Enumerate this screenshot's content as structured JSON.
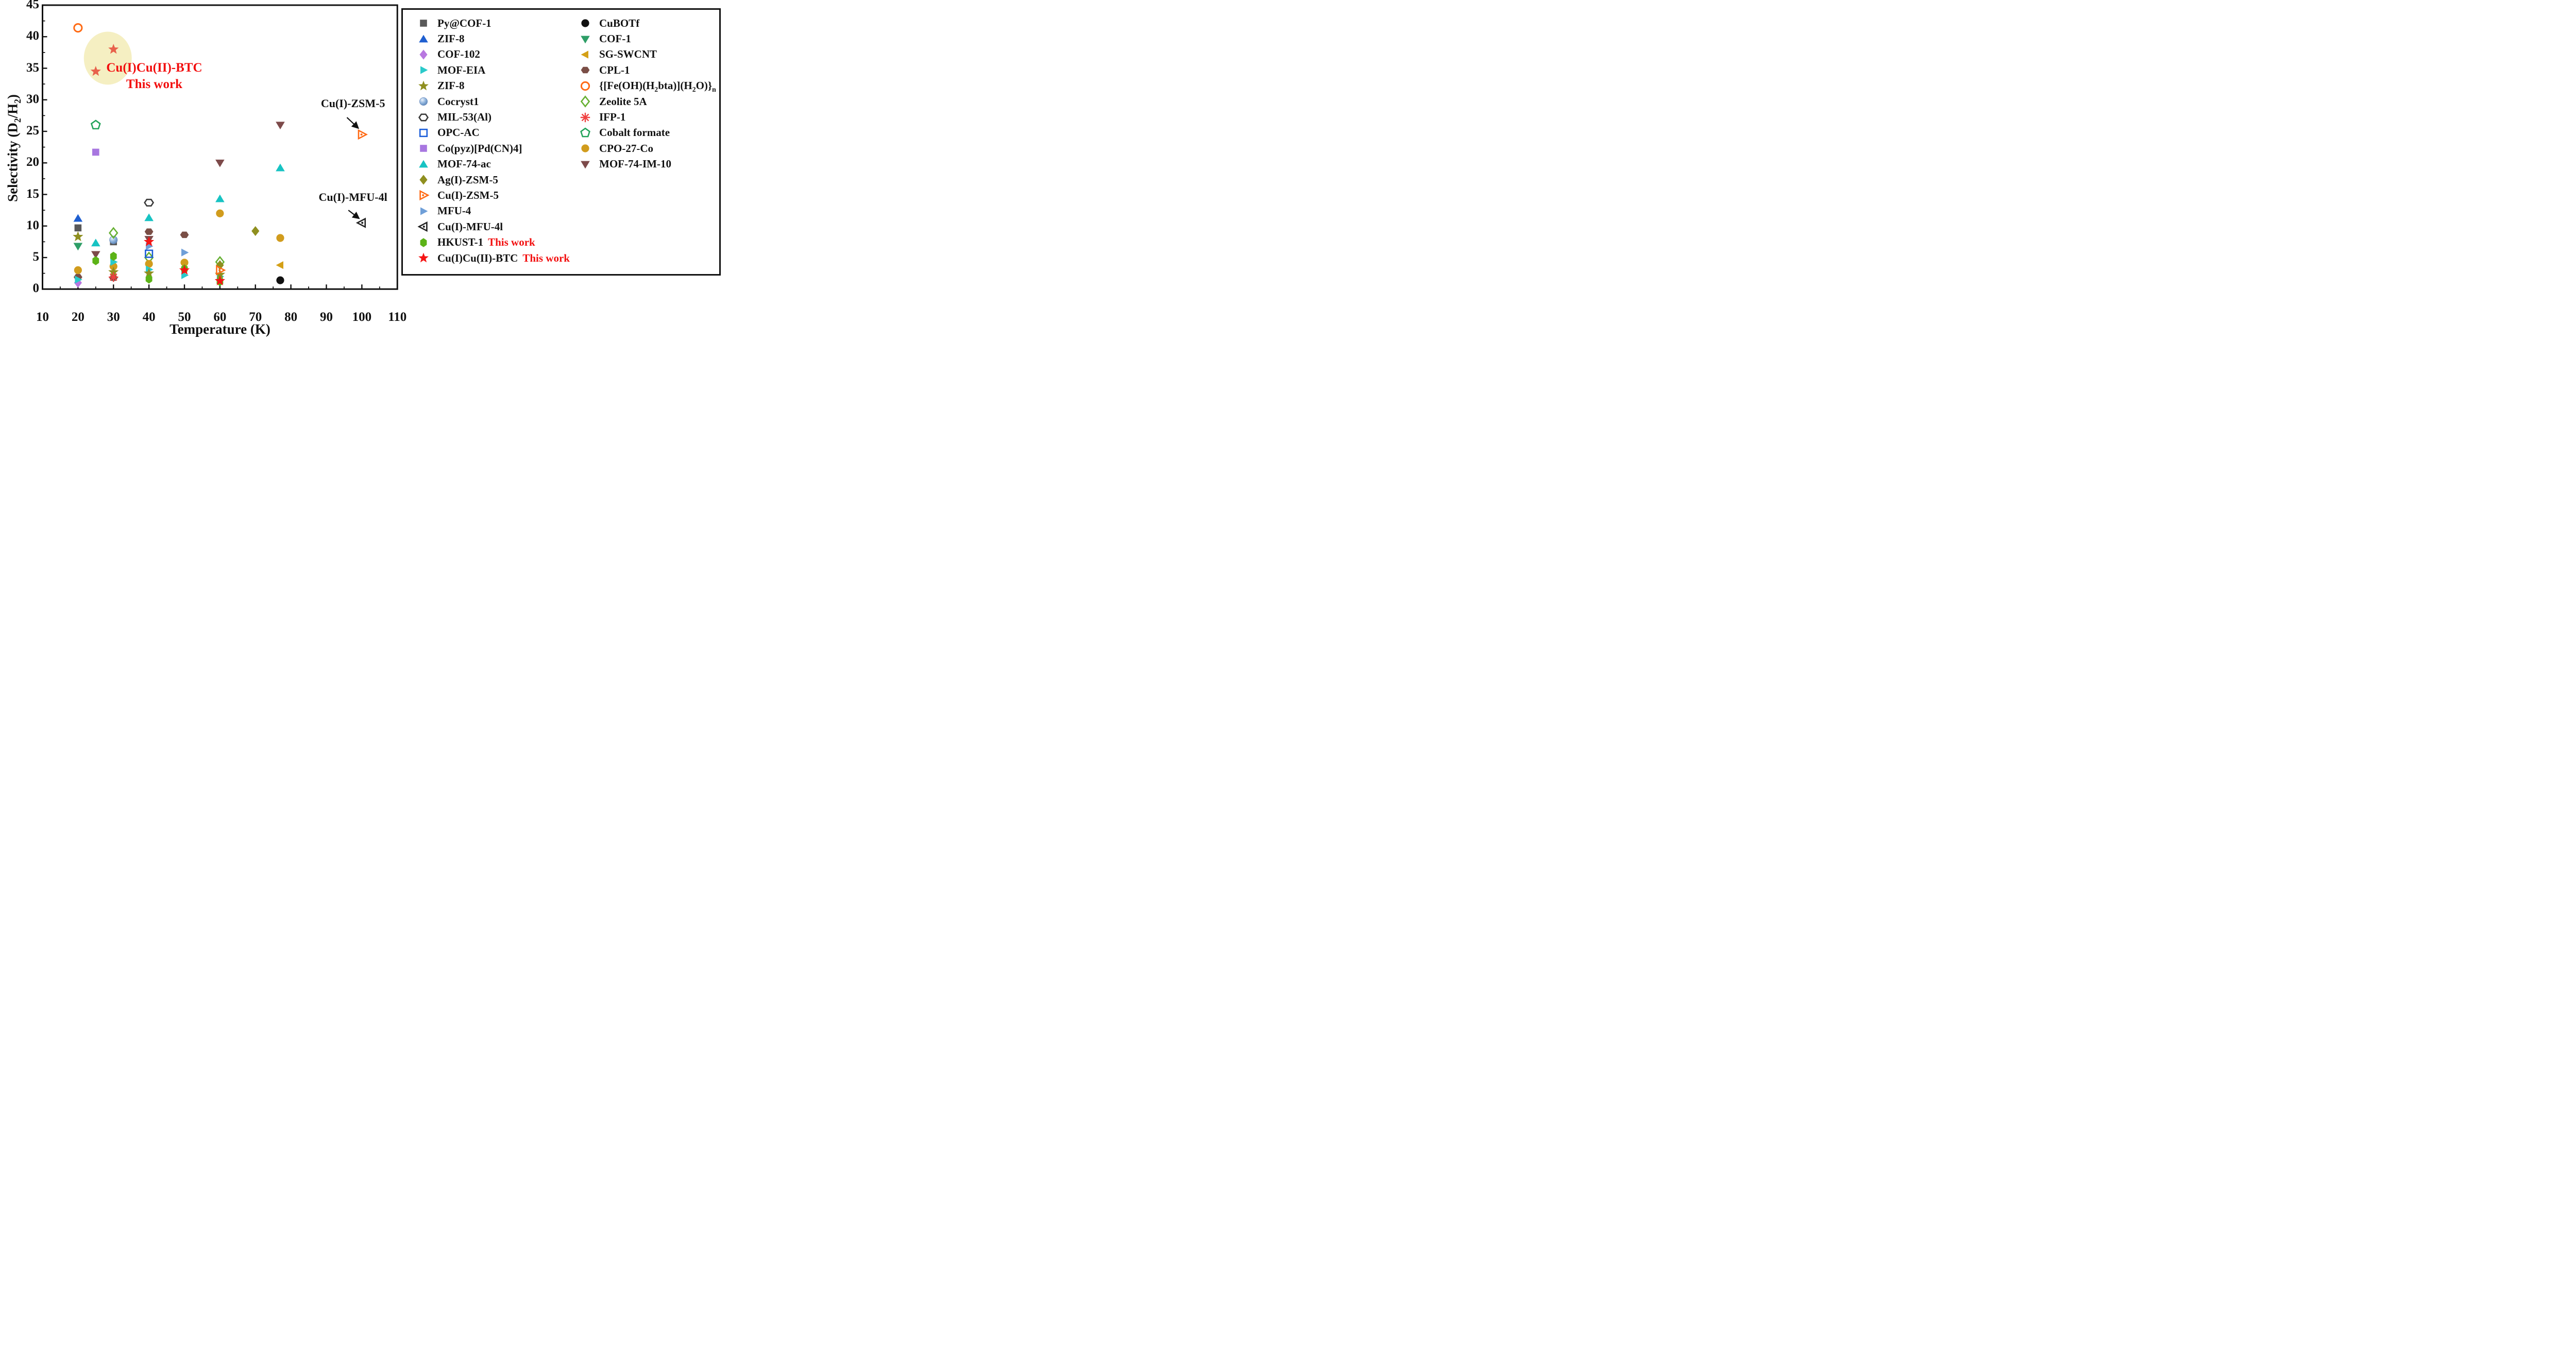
{
  "figure": {
    "x_axis": {
      "title": "Temperature (K)",
      "range": [
        10,
        110
      ],
      "ticks": [
        10,
        20,
        30,
        40,
        50,
        60,
        70,
        80,
        90,
        100,
        110
      ],
      "minor_step": 5
    },
    "y_axis": {
      "title": "Selectivity (D₂/H₂)",
      "range": [
        0,
        45
      ],
      "ticks": [
        0,
        5,
        10,
        15,
        20,
        25,
        30,
        35,
        40,
        45
      ],
      "minor_step": 2.5
    }
  },
  "chart_data": {
    "type": "scatter",
    "title": "",
    "xlabel": "Temperature (K)",
    "ylabel": "Selectivity (D₂/H₂)",
    "xlim": [
      10,
      110
    ],
    "ylim": [
      0,
      45
    ],
    "x_ticks": [
      10,
      20,
      30,
      40,
      50,
      60,
      70,
      80,
      90,
      100,
      110
    ],
    "y_ticks": [
      0,
      5,
      10,
      15,
      20,
      25,
      30,
      35,
      40,
      45
    ],
    "x_minor_step": 5,
    "y_minor_step": 2.5,
    "grid": false,
    "legend_position": "right",
    "highlight_ellipse": {
      "cx": 28.4,
      "cy": 36.6,
      "rx_k": 6.75,
      "ry_units": 4.2,
      "color": "#f5efc2"
    },
    "series": [
      {
        "name": "MIL-53(Al)",
        "marker": "hexagon",
        "color": "#3a3a3a",
        "filled": false,
        "points": [
          [
            40,
            13.7
          ]
        ]
      },
      {
        "name": "CPL-1",
        "marker": "hexagon",
        "color": "#7a4e46",
        "filled": true,
        "points": [
          [
            20,
            1.9
          ],
          [
            30,
            1.8
          ],
          [
            40,
            9.1
          ],
          [
            50,
            8.6
          ]
        ]
      },
      {
        "name": "MOF-74-IM-10",
        "marker": "triangle-down",
        "color": "#7d4a4a",
        "filled": true,
        "points": [
          [
            25,
            5.5
          ],
          [
            40,
            7.9
          ],
          [
            60,
            20.0
          ],
          [
            77,
            26.0
          ]
        ]
      },
      {
        "name": "MOF-74-ac",
        "marker": "triangle-up",
        "color": "#17c3c3",
        "filled": true,
        "points": [
          [
            25,
            7.3
          ],
          [
            40,
            11.3
          ],
          [
            60,
            14.3
          ],
          [
            77,
            19.2
          ]
        ]
      },
      {
        "name": "Py@COF-1",
        "marker": "square",
        "color": "#595959",
        "filled": true,
        "points": [
          [
            20,
            9.7
          ],
          [
            30,
            7.5
          ]
        ]
      },
      {
        "name": "ZIF-8",
        "marker": "triangle-up",
        "color": "#1f5fd0",
        "filled": true,
        "points": [
          [
            20,
            11.2
          ]
        ]
      },
      {
        "name": "Cocryst1",
        "marker": "sphere",
        "color": "#8fb3dc",
        "filled": true,
        "points": [
          [
            30,
            7.8
          ]
        ]
      },
      {
        "name": "COF-102",
        "marker": "diamond",
        "color": "#b878e0",
        "filled": true,
        "points": [
          [
            20,
            1.0
          ]
        ]
      },
      {
        "name": "COF-1",
        "marker": "triangle-down",
        "color": "#2e9e67",
        "filled": true,
        "points": [
          [
            20,
            6.8
          ]
        ]
      },
      {
        "name": "Zeolite 5A",
        "marker": "diamond",
        "color": "#66b032",
        "filled": false,
        "points": [
          [
            30,
            8.9
          ],
          [
            40,
            5.0
          ],
          [
            60,
            4.3
          ]
        ]
      },
      {
        "name": "Co(pyz)[Pd(CN)4]",
        "marker": "square",
        "color": "#a877e0",
        "filled": true,
        "points": [
          [
            25,
            21.7
          ]
        ]
      },
      {
        "name": "Cobalt formate",
        "marker": "pentagon",
        "color": "#22a35a",
        "filled": false,
        "points": [
          [
            25,
            26.0
          ]
        ]
      },
      {
        "name": "{[Fe(OH)(H₂bta)](H₂O)}ₙ",
        "marker": "circle",
        "color": "#ff6a14",
        "filled": false,
        "points": [
          [
            20,
            41.4
          ]
        ]
      },
      {
        "name": "Ag(I)-ZSM-5",
        "marker": "diamond",
        "color": "#8f8f1f",
        "filled": true,
        "points": [
          [
            60,
            3.8
          ],
          [
            70,
            9.2
          ]
        ]
      },
      {
        "name": "MFU-4",
        "marker": "triangle-right",
        "color": "#6f9fd8",
        "filled": true,
        "points": [
          [
            40,
            6.8
          ],
          [
            50,
            5.8
          ]
        ]
      },
      {
        "name": "OPC-AC",
        "marker": "square",
        "color": "#1b5ed9",
        "filled": false,
        "points": [
          [
            40,
            5.6
          ]
        ]
      },
      {
        "name": "CPO-27-Co",
        "marker": "circle",
        "color": "#d19c1d",
        "filled": true,
        "points": [
          [
            20,
            3.0
          ],
          [
            30,
            3.6
          ],
          [
            40,
            4.0
          ],
          [
            50,
            4.2
          ],
          [
            60,
            12.0
          ],
          [
            77,
            8.1
          ]
        ]
      },
      {
        "name": "SG-SWCNT",
        "marker": "triangle-left",
        "color": "#d4a017",
        "filled": true,
        "points": [
          [
            77,
            3.8
          ]
        ]
      },
      {
        "name": "CuBOTf",
        "marker": "circle",
        "color": "#111111",
        "filled": true,
        "points": [
          [
            77,
            1.4
          ]
        ]
      },
      {
        "name": "MOF-EIA",
        "marker": "triangle-right",
        "color": "#2acaca",
        "filled": true,
        "points": [
          [
            20,
            1.5
          ],
          [
            30,
            4.3
          ],
          [
            40,
            3.1
          ],
          [
            50,
            2.2
          ],
          [
            60,
            2.0
          ]
        ]
      },
      {
        "name": "ZIF-8 (star)",
        "marker": "star",
        "color": "#8f8f1f",
        "filled": true,
        "points": [
          [
            20,
            8.3
          ],
          [
            30,
            2.7
          ],
          [
            40,
            2.5
          ],
          [
            60,
            2.3
          ]
        ]
      },
      {
        "name": "IFP-1",
        "marker": "asterisk",
        "color": "#f04040",
        "filled": false,
        "points": [
          [
            30,
            1.9
          ]
        ]
      },
      {
        "name": "Cu(I)-ZSM-5",
        "marker": "triangle-right-dot",
        "color": "#ff6a14",
        "filled": false,
        "points": [
          [
            60,
            3.0
          ],
          [
            100,
            24.5
          ]
        ]
      },
      {
        "name": "Cu(I)-MFU-4l",
        "marker": "triangle-left-dot",
        "color": "#222222",
        "filled": false,
        "points": [
          [
            100,
            10.5
          ]
        ]
      },
      {
        "name": "HKUST-1",
        "marker": "hexagon-tall",
        "color": "#5cb317",
        "filled": true,
        "points": [
          [
            25,
            4.5
          ],
          [
            30,
            5.2
          ],
          [
            40,
            1.6
          ],
          [
            50,
            3.2
          ],
          [
            60,
            1.2
          ]
        ]
      },
      {
        "name": "Cu(I)Cu(II)-BTC (highlighted)",
        "marker": "star",
        "color": "#e8614b",
        "filled": true,
        "points": [
          [
            25,
            34.5
          ],
          [
            30,
            38.0
          ]
        ]
      },
      {
        "name": "Cu(I)Cu(II)-BTC",
        "marker": "star",
        "color": "#f51515",
        "filled": true,
        "points": [
          [
            40,
            7.5
          ],
          [
            50,
            3.0
          ],
          [
            60,
            1.3
          ]
        ]
      }
    ],
    "annotations": [
      {
        "text": "Cu(I)-ZSM-5",
        "x": 97.5,
        "y": 29.3,
        "color": "#111111",
        "arrow": {
          "x1": 95.8,
          "y1": 27.2,
          "x2": 99.0,
          "y2": 25.5
        }
      },
      {
        "text": "Cu(I)-MFU-4l",
        "x": 97.5,
        "y": 14.5,
        "color": "#111111",
        "arrow": {
          "x1": 96.2,
          "y1": 12.5,
          "x2": 99.2,
          "y2": 11.2
        }
      }
    ],
    "labels": [
      {
        "text": "Cu(I)Cu(II)-BTC",
        "x": 41.5,
        "y": 34.9,
        "color": "#f20d0d"
      },
      {
        "text": "This work",
        "x": 41.5,
        "y": 32.3,
        "color": "#f20d0d"
      }
    ]
  },
  "legend": {
    "this_work_color": "#f20d0d",
    "col1": [
      {
        "label": "Py@COF-1",
        "marker": "square",
        "color": "#595959",
        "filled": true
      },
      {
        "label": "ZIF-8",
        "marker": "triangle-up",
        "color": "#1f5fd0",
        "filled": true
      },
      {
        "label": "COF-102",
        "marker": "diamond",
        "color": "#b878e0",
        "filled": true
      },
      {
        "label": "MOF-EIA",
        "marker": "triangle-right",
        "color": "#2acaca",
        "filled": true
      },
      {
        "label": "ZIF-8",
        "marker": "star",
        "color": "#8f8f1f",
        "filled": true
      },
      {
        "label": "Cocryst1",
        "marker": "sphere",
        "color": "#8fb3dc",
        "filled": true
      },
      {
        "label": "MIL-53(Al)",
        "marker": "hexagon",
        "color": "#3a3a3a",
        "filled": false
      },
      {
        "label": "OPC-AC",
        "marker": "square",
        "color": "#1b5ed9",
        "filled": false
      },
      {
        "label": "Co(pyz)[Pd(CN)4]",
        "marker": "square",
        "color": "#a877e0",
        "filled": true
      },
      {
        "label": "MOF-74-ac",
        "marker": "triangle-up",
        "color": "#17c3c3",
        "filled": true
      },
      {
        "label": "Ag(I)-ZSM-5",
        "marker": "diamond",
        "color": "#8f8f1f",
        "filled": true
      },
      {
        "label": "Cu(I)-ZSM-5",
        "marker": "triangle-right-dot",
        "color": "#ff6a14",
        "filled": false
      },
      {
        "label": "MFU-4",
        "marker": "triangle-right",
        "color": "#6f9fd8",
        "filled": true
      },
      {
        "label": "Cu(I)-MFU-4l",
        "marker": "triangle-left-dot",
        "color": "#222222",
        "filled": false
      },
      {
        "label": "HKUST-1",
        "suffix": "This work",
        "marker": "hexagon-tall",
        "color": "#5cb317",
        "filled": true
      },
      {
        "label": "Cu(I)Cu(II)-BTC",
        "suffix": "This work",
        "marker": "star",
        "color": "#f51515",
        "filled": true
      }
    ],
    "col2": [
      {
        "label": "CuBOTf",
        "marker": "circle",
        "color": "#111111",
        "filled": true
      },
      {
        "label": "COF-1",
        "marker": "triangle-down",
        "color": "#2e9e67",
        "filled": true
      },
      {
        "label": "SG-SWCNT",
        "marker": "triangle-left",
        "color": "#d4a017",
        "filled": true
      },
      {
        "label": "CPL-1",
        "marker": "hexagon",
        "color": "#7a4e46",
        "filled": true
      },
      {
        "label": "{[Fe(OH)(H₂bta)](H₂O)}ₙ",
        "marker": "circle",
        "color": "#ff6a14",
        "filled": false
      },
      {
        "label": "Zeolite 5A",
        "marker": "diamond",
        "color": "#66b032",
        "filled": false
      },
      {
        "label": "IFP-1",
        "marker": "asterisk",
        "color": "#f04040",
        "filled": false
      },
      {
        "label": "Cobalt formate",
        "marker": "pentagon",
        "color": "#22a35a",
        "filled": false
      },
      {
        "label": "CPO-27-Co",
        "marker": "circle",
        "color": "#d19c1d",
        "filled": true
      },
      {
        "label": "MOF-74-IM-10",
        "marker": "triangle-down",
        "color": "#7d4a4a",
        "filled": true
      }
    ]
  }
}
